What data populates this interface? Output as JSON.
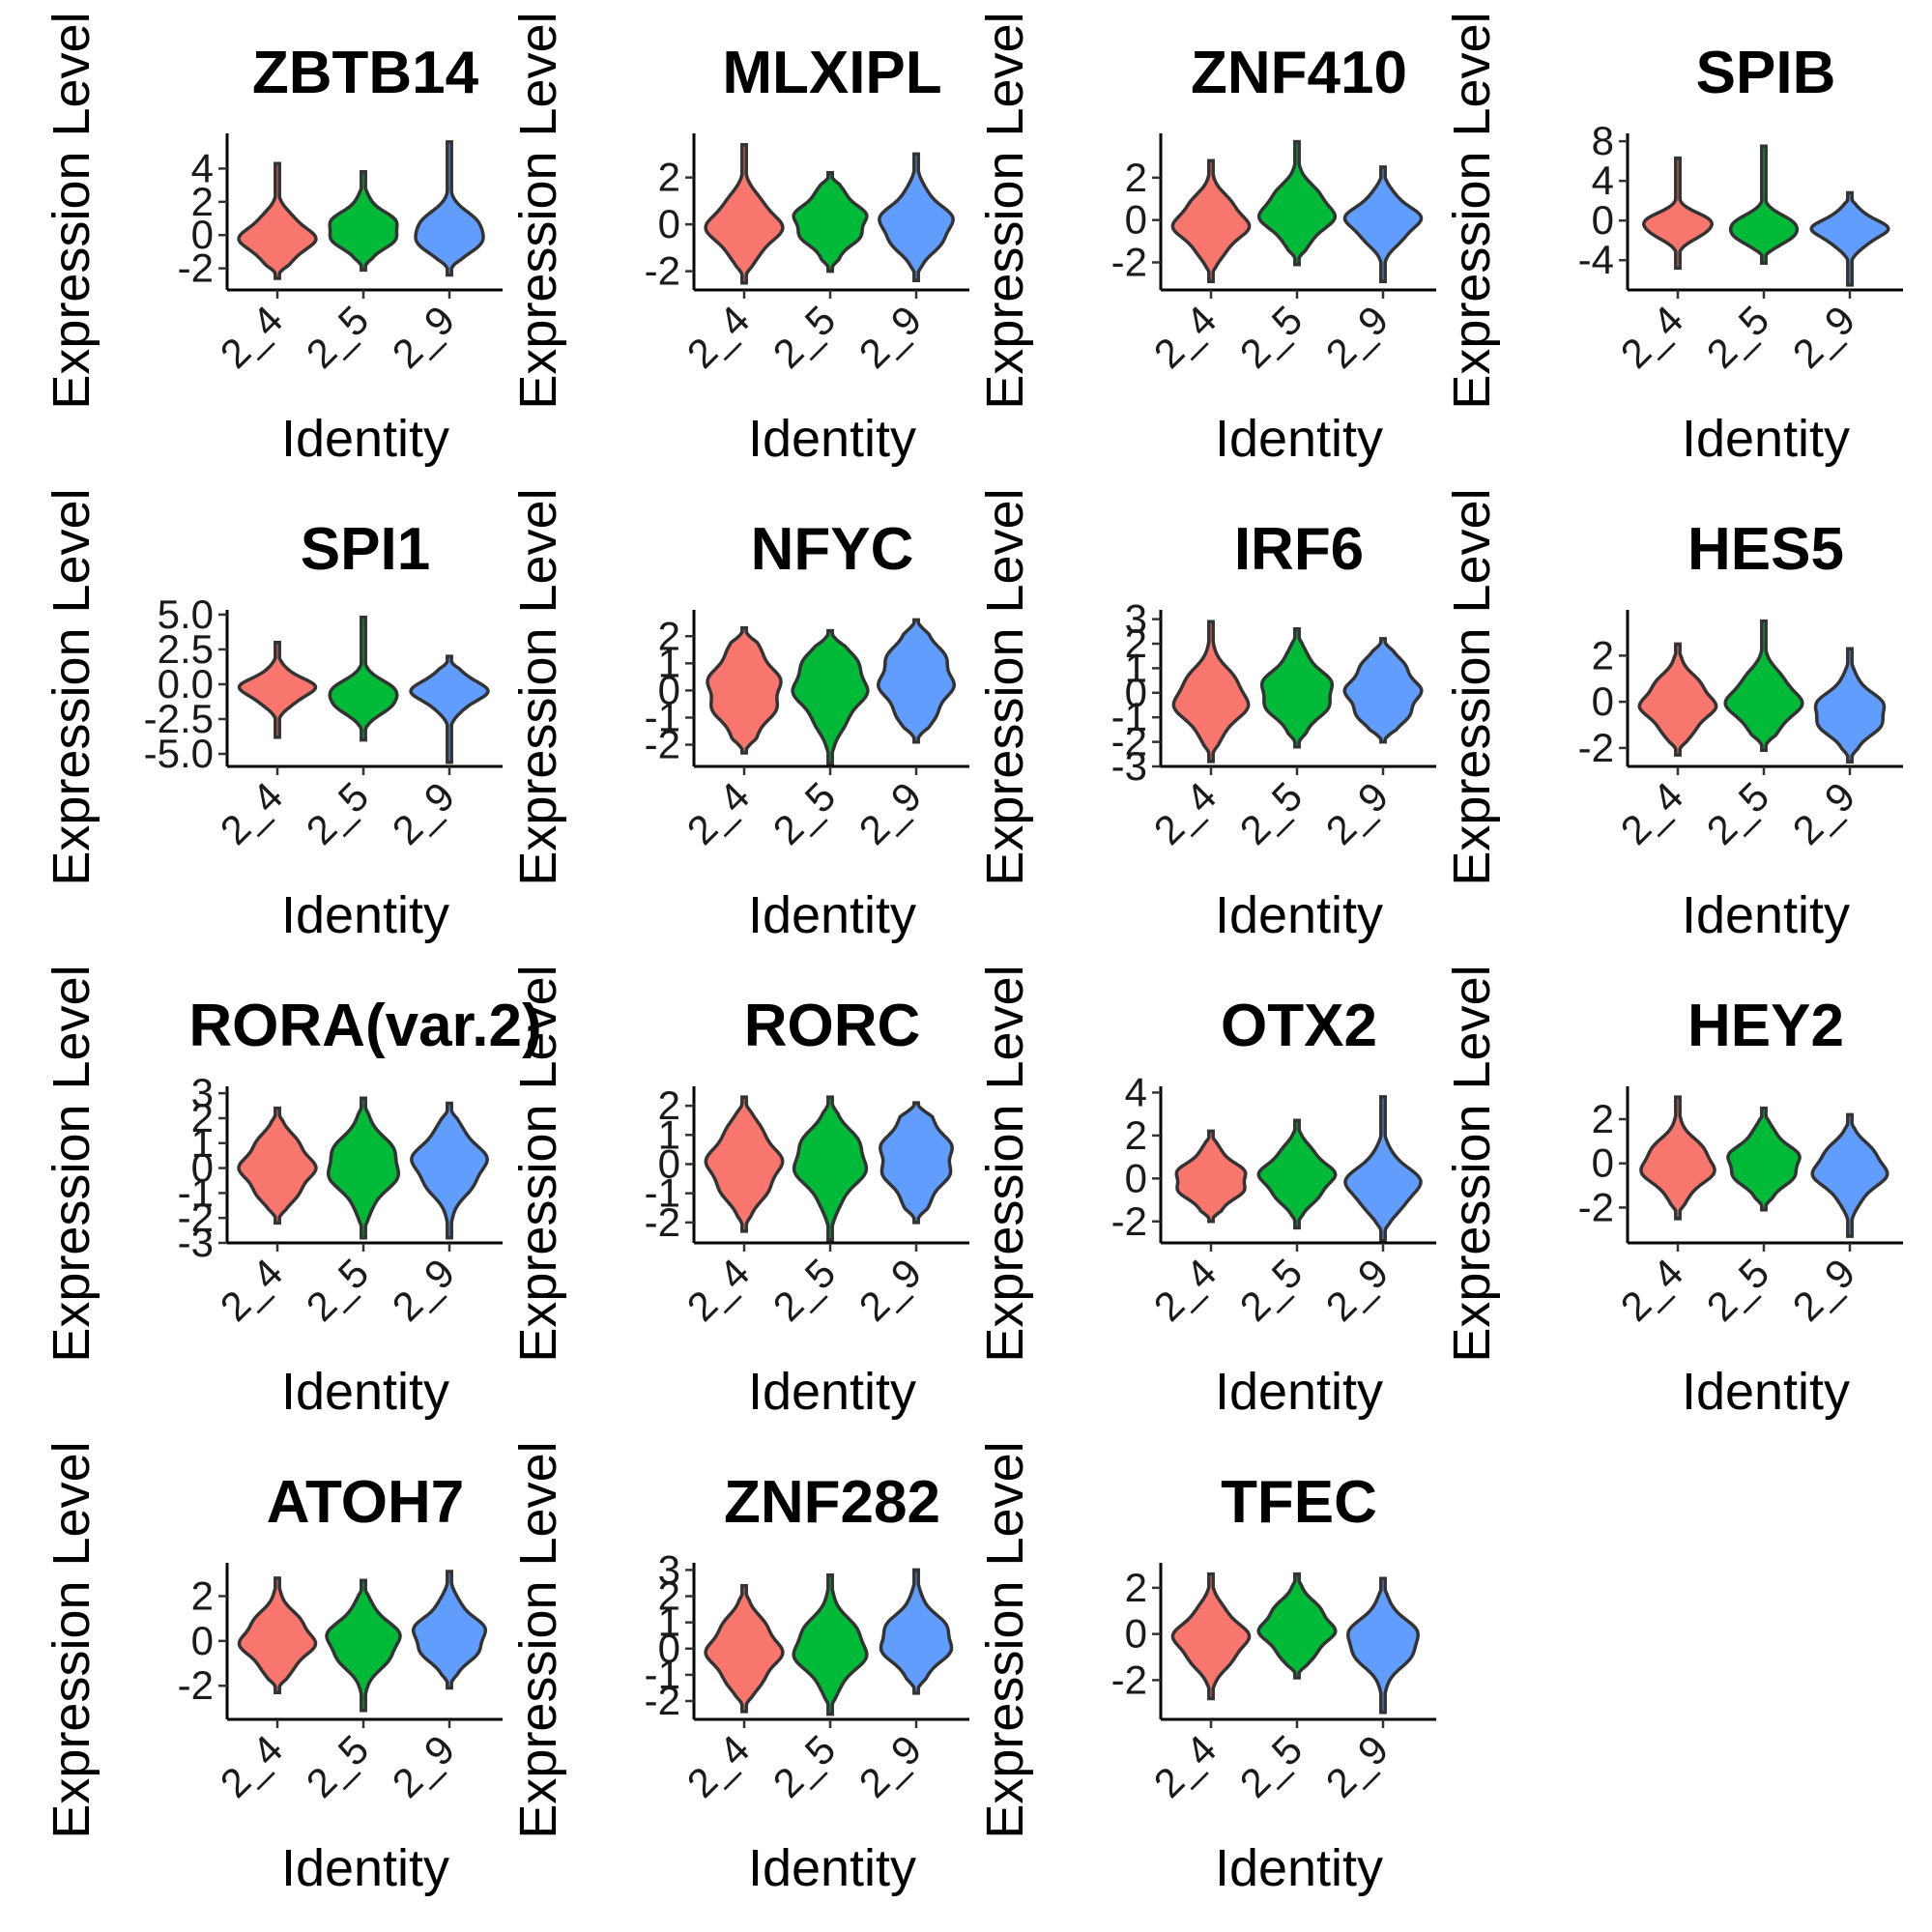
{
  "identity_colors": [
    "#F8766D",
    "#00BA38",
    "#619CFF"
  ],
  "chart_data": [
    {
      "type": "violin",
      "title": "ZBTB14",
      "xlabel": "Identity",
      "ylabel": "Expression Level",
      "categories": [
        "2_4",
        "2_5",
        "2_9"
      ],
      "yticks": [
        -2,
        0,
        2,
        4
      ],
      "ytick_labels": [
        "-2",
        "0",
        "2",
        "4"
      ],
      "ylim": [
        -3.3,
        6.0
      ],
      "violins": [
        {
          "category": "2_4",
          "min": -2.6,
          "max": 4.3,
          "center": -0.2,
          "spread": 1.05
        },
        {
          "category": "2_5",
          "min": -2.1,
          "max": 3.8,
          "center": 0.3,
          "spread": 1.05
        },
        {
          "category": "2_9",
          "min": -2.4,
          "max": 5.6,
          "center": 0.1,
          "spread": 1.05
        }
      ]
    },
    {
      "type": "violin",
      "title": "MLXIPL",
      "xlabel": "Identity",
      "ylabel": "Expression Level",
      "categories": [
        "2_4",
        "2_5",
        "2_9"
      ],
      "yticks": [
        -2,
        0,
        2
      ],
      "ytick_labels": [
        "-2",
        "0",
        "2"
      ],
      "ylim": [
        -2.8,
        3.8
      ],
      "violins": [
        {
          "category": "2_4",
          "min": -2.5,
          "max": 3.4,
          "center": -0.1,
          "spread": 0.95
        },
        {
          "category": "2_5",
          "min": -2.0,
          "max": 2.2,
          "center": 0.1,
          "spread": 0.95
        },
        {
          "category": "2_9",
          "min": -2.4,
          "max": 3.0,
          "center": 0.0,
          "spread": 0.95
        }
      ]
    },
    {
      "type": "violin",
      "title": "ZNF410",
      "xlabel": "Identity",
      "ylabel": "Expression Level",
      "categories": [
        "2_4",
        "2_5",
        "2_9"
      ],
      "yticks": [
        -2,
        0,
        2
      ],
      "ytick_labels": [
        "-2",
        "0",
        "2"
      ],
      "ylim": [
        -3.3,
        4.0
      ],
      "violins": [
        {
          "category": "2_4",
          "min": -2.9,
          "max": 2.8,
          "center": -0.2,
          "spread": 1.0
        },
        {
          "category": "2_5",
          "min": -2.1,
          "max": 3.7,
          "center": 0.3,
          "spread": 1.0
        },
        {
          "category": "2_9",
          "min": -2.9,
          "max": 2.5,
          "center": 0.0,
          "spread": 0.85
        }
      ]
    },
    {
      "type": "violin",
      "title": "SPIB",
      "xlabel": "Identity",
      "ylabel": "Expression Level",
      "categories": [
        "2_4",
        "2_5",
        "2_9"
      ],
      "yticks": [
        -4,
        0,
        4,
        8
      ],
      "ytick_labels": [
        "-4",
        "0",
        "4",
        "8"
      ],
      "ylim": [
        -7.0,
        8.6
      ],
      "violins": [
        {
          "category": "2_4",
          "min": -4.8,
          "max": 6.3,
          "center": -0.5,
          "spread": 1.1
        },
        {
          "category": "2_5",
          "min": -4.3,
          "max": 7.5,
          "center": -0.9,
          "spread": 1.2
        },
        {
          "category": "2_9",
          "min": -6.5,
          "max": 2.8,
          "center": -0.9,
          "spread": 1.3
        }
      ]
    },
    {
      "type": "violin",
      "title": "SPI1",
      "xlabel": "Identity",
      "ylabel": "Expression Level",
      "categories": [
        "2_4",
        "2_5",
        "2_9"
      ],
      "yticks": [
        -5.0,
        -2.5,
        0.0,
        2.5,
        5.0
      ],
      "ytick_labels": [
        "-5.0",
        "-2.5",
        "0.0",
        "2.5",
        "5.0"
      ],
      "ylim": [
        -5.9,
        5.2
      ],
      "violins": [
        {
          "category": "2_4",
          "min": -3.8,
          "max": 3.0,
          "center": -0.3,
          "spread": 0.9
        },
        {
          "category": "2_5",
          "min": -4.0,
          "max": 4.8,
          "center": -0.9,
          "spread": 1.0
        },
        {
          "category": "2_9",
          "min": -5.6,
          "max": 2.0,
          "center": -0.5,
          "spread": 1.0
        }
      ]
    },
    {
      "type": "violin",
      "title": "NFYC",
      "xlabel": "Identity",
      "ylabel": "Expression Level",
      "categories": [
        "2_4",
        "2_5",
        "2_9"
      ],
      "yticks": [
        -2,
        -1,
        0,
        1,
        2
      ],
      "ytick_labels": [
        "-2",
        "-1",
        "0",
        "1",
        "2"
      ],
      "ylim": [
        -2.8,
        2.9
      ],
      "violins": [
        {
          "category": "2_4",
          "min": -2.3,
          "max": 2.3,
          "center": 0.0,
          "spread": 1.2
        },
        {
          "category": "2_5",
          "min": -2.7,
          "max": 2.2,
          "center": 0.2,
          "spread": 1.1
        },
        {
          "category": "2_9",
          "min": -1.9,
          "max": 2.6,
          "center": 0.4,
          "spread": 1.2
        }
      ]
    },
    {
      "type": "violin",
      "title": "IRF6",
      "xlabel": "Identity",
      "ylabel": "Expression Level",
      "categories": [
        "2_4",
        "2_5",
        "2_9"
      ],
      "yticks": [
        -3,
        -2,
        -1,
        0,
        1,
        2,
        3
      ],
      "ytick_labels": [
        "-3",
        "-2",
        "-1",
        "0",
        "1",
        "2",
        "3"
      ],
      "ylim": [
        -3.0,
        3.3
      ],
      "violins": [
        {
          "category": "2_4",
          "min": -2.8,
          "max": 2.9,
          "center": -0.3,
          "spread": 1.0
        },
        {
          "category": "2_5",
          "min": -2.2,
          "max": 2.6,
          "center": 0.0,
          "spread": 1.0
        },
        {
          "category": "2_9",
          "min": -2.0,
          "max": 2.2,
          "center": 0.0,
          "spread": 1.1
        }
      ]
    },
    {
      "type": "violin",
      "title": "HES5",
      "xlabel": "Identity",
      "ylabel": "Expression Level",
      "categories": [
        "2_4",
        "2_5",
        "2_9"
      ],
      "yticks": [
        -2,
        0,
        2
      ],
      "ytick_labels": [
        "-2",
        "0",
        "2"
      ],
      "ylim": [
        -2.8,
        3.9
      ],
      "violins": [
        {
          "category": "2_4",
          "min": -2.3,
          "max": 2.5,
          "center": -0.1,
          "spread": 0.95
        },
        {
          "category": "2_5",
          "min": -2.1,
          "max": 3.5,
          "center": 0.0,
          "spread": 0.95
        },
        {
          "category": "2_9",
          "min": -2.6,
          "max": 2.3,
          "center": -0.5,
          "spread": 0.9
        }
      ]
    },
    {
      "type": "violin",
      "title": "RORA(var.2)",
      "xlabel": "Identity",
      "ylabel": "Expression Level",
      "categories": [
        "2_4",
        "2_5",
        "2_9"
      ],
      "yticks": [
        -3,
        -2,
        -1,
        0,
        1,
        2,
        3
      ],
      "ytick_labels": [
        "-3",
        "-2",
        "-1",
        "0",
        "1",
        "2",
        "3"
      ],
      "ylim": [
        -3.0,
        3.2
      ],
      "violins": [
        {
          "category": "2_4",
          "min": -2.2,
          "max": 2.4,
          "center": 0.0,
          "spread": 1.0
        },
        {
          "category": "2_5",
          "min": -2.8,
          "max": 2.8,
          "center": 0.1,
          "spread": 1.05
        },
        {
          "category": "2_9",
          "min": -2.8,
          "max": 2.6,
          "center": 0.2,
          "spread": 1.0
        }
      ]
    },
    {
      "type": "violin",
      "title": "RORC",
      "xlabel": "Identity",
      "ylabel": "Expression Level",
      "categories": [
        "2_4",
        "2_5",
        "2_9"
      ],
      "yticks": [
        -2,
        -1,
        0,
        1,
        2
      ],
      "ytick_labels": [
        "-2",
        "-1",
        "0",
        "1",
        "2"
      ],
      "ylim": [
        -2.7,
        2.6
      ],
      "violins": [
        {
          "category": "2_4",
          "min": -2.3,
          "max": 2.3,
          "center": 0.0,
          "spread": 1.0
        },
        {
          "category": "2_5",
          "min": -2.6,
          "max": 2.3,
          "center": 0.1,
          "spread": 0.95
        },
        {
          "category": "2_9",
          "min": -2.0,
          "max": 2.1,
          "center": 0.2,
          "spread": 1.1
        }
      ]
    },
    {
      "type": "violin",
      "title": "OTX2",
      "xlabel": "Identity",
      "ylabel": "Expression Level",
      "categories": [
        "2_4",
        "2_5",
        "2_9"
      ],
      "yticks": [
        -2,
        0,
        2,
        4
      ],
      "ytick_labels": [
        "-2",
        "0",
        "2",
        "4"
      ],
      "ylim": [
        -3.0,
        4.2
      ],
      "violins": [
        {
          "category": "2_4",
          "min": -2.0,
          "max": 2.2,
          "center": -0.1,
          "spread": 0.9
        },
        {
          "category": "2_5",
          "min": -2.3,
          "max": 2.7,
          "center": 0.1,
          "spread": 0.95
        },
        {
          "category": "2_9",
          "min": -2.9,
          "max": 3.8,
          "center": -0.3,
          "spread": 0.95
        }
      ]
    },
    {
      "type": "violin",
      "title": "HEY2",
      "xlabel": "Identity",
      "ylabel": "Expression Level",
      "categories": [
        "2_4",
        "2_5",
        "2_9"
      ],
      "yticks": [
        -2,
        0,
        2
      ],
      "ytick_labels": [
        "-2",
        "0",
        "2"
      ],
      "ylim": [
        -3.6,
        3.4
      ],
      "violins": [
        {
          "category": "2_4",
          "min": -2.5,
          "max": 3.0,
          "center": -0.1,
          "spread": 0.95
        },
        {
          "category": "2_5",
          "min": -2.1,
          "max": 2.5,
          "center": 0.0,
          "spread": 0.95
        },
        {
          "category": "2_9",
          "min": -3.3,
          "max": 2.2,
          "center": -0.3,
          "spread": 0.95
        }
      ]
    },
    {
      "type": "violin",
      "title": "ATOH7",
      "xlabel": "Identity",
      "ylabel": "Expression Level",
      "categories": [
        "2_4",
        "2_5",
        "2_9"
      ],
      "yticks": [
        -2,
        0,
        2
      ],
      "ytick_labels": [
        "-2",
        "0",
        "2"
      ],
      "ylim": [
        -3.5,
        3.4
      ],
      "violins": [
        {
          "category": "2_4",
          "min": -2.3,
          "max": 2.8,
          "center": 0.0,
          "spread": 1.0
        },
        {
          "category": "2_5",
          "min": -3.1,
          "max": 2.7,
          "center": 0.0,
          "spread": 1.0
        },
        {
          "category": "2_9",
          "min": -2.1,
          "max": 3.1,
          "center": 0.2,
          "spread": 1.0
        }
      ]
    },
    {
      "type": "violin",
      "title": "ZNF282",
      "xlabel": "Identity",
      "ylabel": "Expression Level",
      "categories": [
        "2_4",
        "2_5",
        "2_9"
      ],
      "yticks": [
        -2,
        -1,
        0,
        1,
        2,
        3
      ],
      "ytick_labels": [
        "-2",
        "-1",
        "0",
        "1",
        "2",
        "3"
      ],
      "ylim": [
        -2.7,
        3.2
      ],
      "violins": [
        {
          "category": "2_4",
          "min": -2.4,
          "max": 2.4,
          "center": -0.1,
          "spread": 1.0
        },
        {
          "category": "2_5",
          "min": -2.5,
          "max": 2.8,
          "center": 0.0,
          "spread": 0.95
        },
        {
          "category": "2_9",
          "min": -1.7,
          "max": 3.0,
          "center": 0.3,
          "spread": 0.9
        }
      ]
    },
    {
      "type": "violin",
      "title": "TFEC",
      "xlabel": "Identity",
      "ylabel": "Expression Level",
      "categories": [
        "2_4",
        "2_5",
        "2_9"
      ],
      "yticks": [
        -2,
        0,
        2
      ],
      "ytick_labels": [
        "-2",
        "0",
        "2"
      ],
      "ylim": [
        -3.7,
        3.0
      ],
      "violins": [
        {
          "category": "2_4",
          "min": -2.8,
          "max": 2.6,
          "center": -0.2,
          "spread": 0.95
        },
        {
          "category": "2_5",
          "min": -1.9,
          "max": 2.6,
          "center": 0.2,
          "spread": 0.95
        },
        {
          "category": "2_9",
          "min": -3.4,
          "max": 2.4,
          "center": -0.3,
          "spread": 0.95
        }
      ]
    }
  ]
}
